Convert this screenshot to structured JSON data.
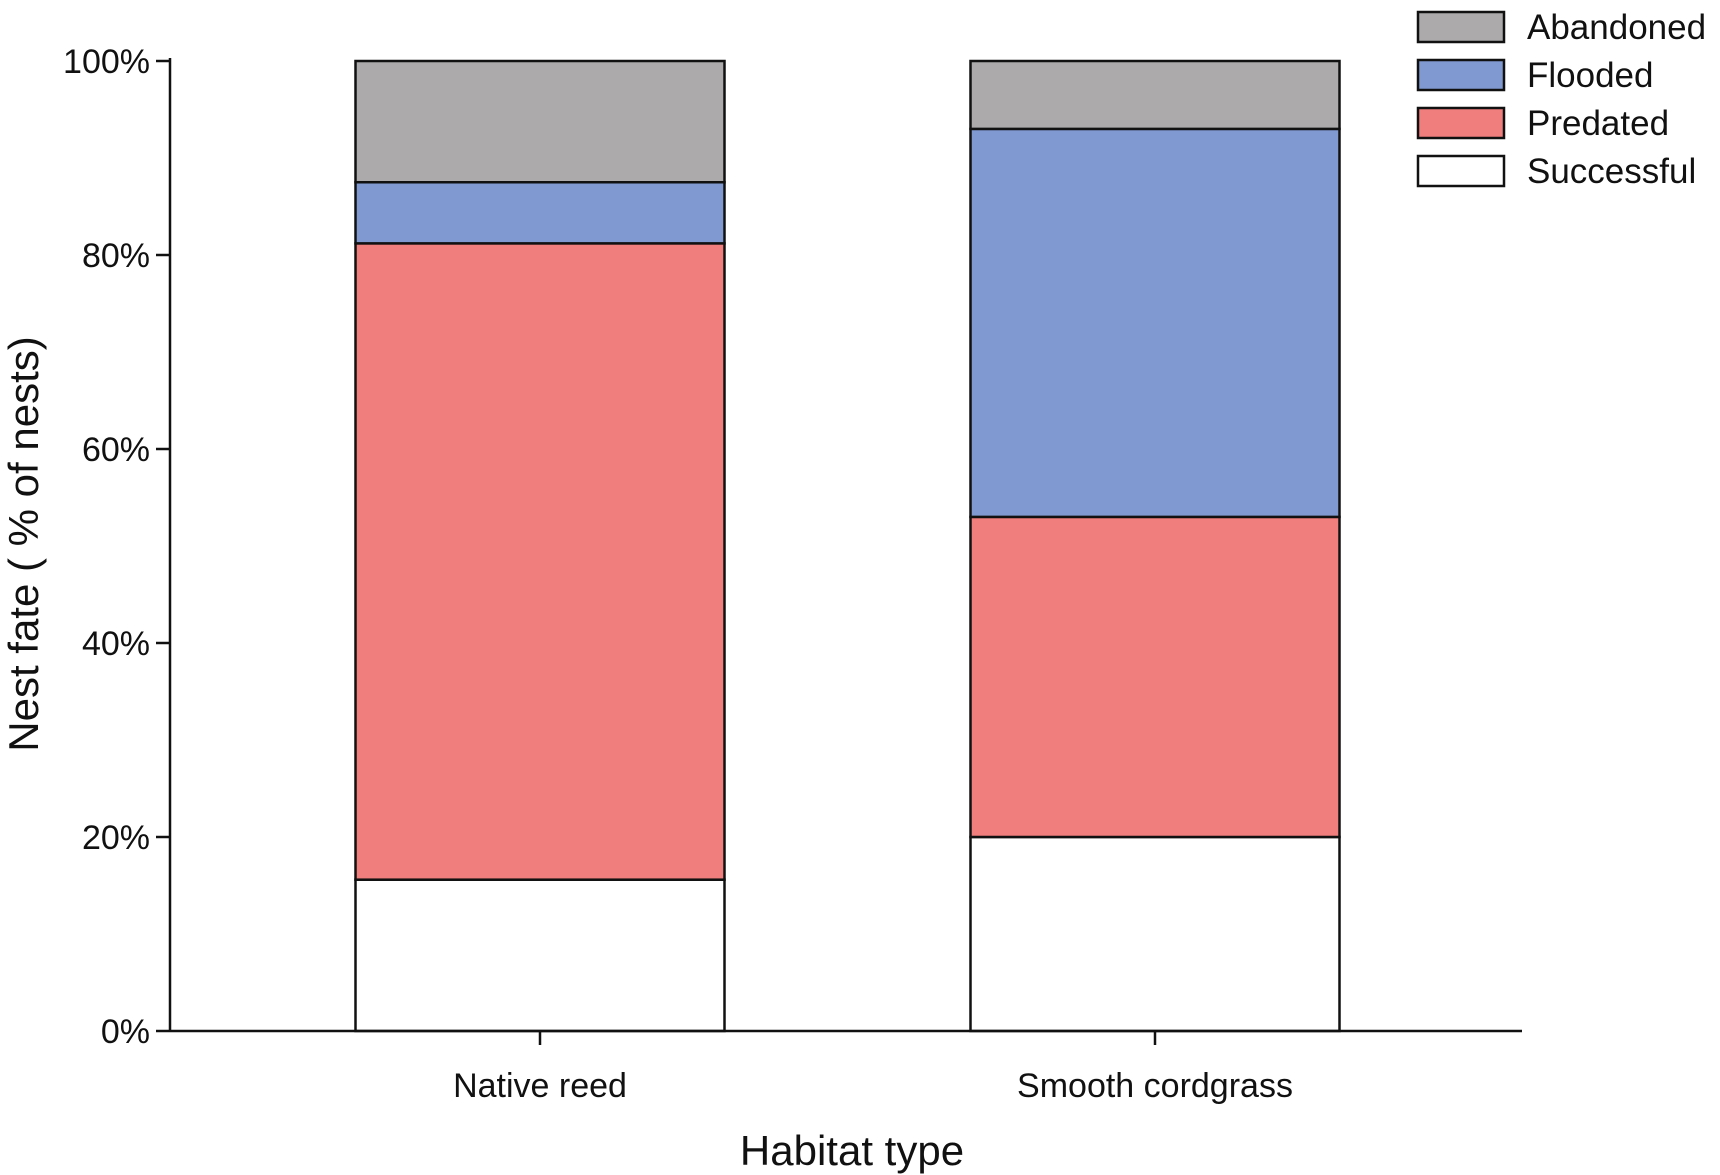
{
  "chart_data": {
    "type": "bar",
    "stacked": true,
    "categories": [
      "Native reed",
      "Smooth cordgrass"
    ],
    "series": [
      {
        "name": "Successful",
        "values": [
          15.6,
          20.0
        ],
        "color": "#ffffff"
      },
      {
        "name": "Predated",
        "values": [
          65.6,
          33.0
        ],
        "color": "#ef7e7c"
      },
      {
        "name": "Flooded",
        "values": [
          6.3,
          40.0
        ],
        "color": "#8099d0"
      },
      {
        "name": "Abandoned",
        "values": [
          12.5,
          7.0
        ],
        "color": "#acaaab"
      }
    ],
    "legend_order": [
      "Abandoned",
      "Flooded",
      "Predated",
      "Successful"
    ],
    "legend_position": "top-right",
    "title": "",
    "xlabel": "Habitat type",
    "ylabel": "Nest fate ( % of nests)",
    "ylim": [
      0,
      100
    ],
    "yticks": [
      "0%",
      "20%",
      "40%",
      "60%",
      "80%",
      "100%"
    ],
    "grid": false
  }
}
